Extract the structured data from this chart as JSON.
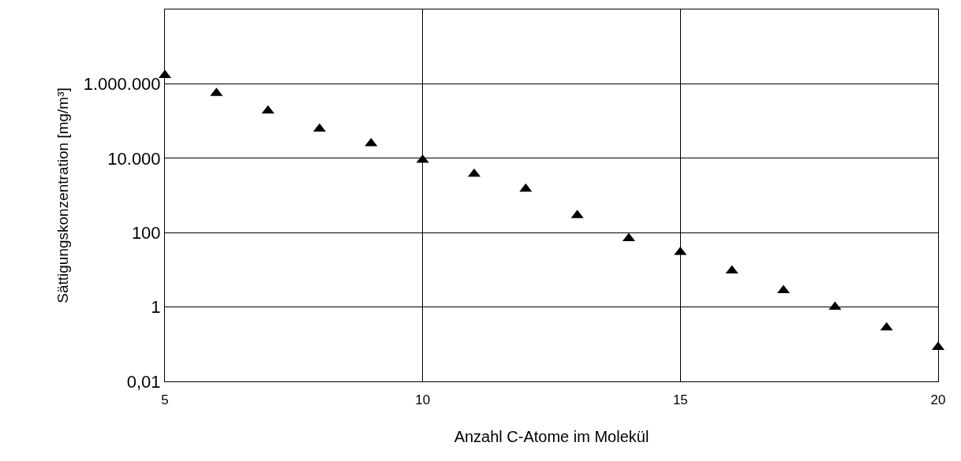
{
  "chart_data": {
    "type": "scatter",
    "xlabel": "Anzahl C-Atome im Molekül",
    "ylabel": "Sättigungskonzentration [mg/m³]",
    "x": [
      5,
      6,
      7,
      8,
      9,
      10,
      11,
      12,
      13,
      14,
      15,
      16,
      17,
      18,
      19,
      20
    ],
    "values": [
      1700000,
      560000,
      190000,
      62000,
      25000,
      9000,
      3800,
      1500,
      290,
      70,
      30,
      9.5,
      2.8,
      1.0,
      0.28,
      0.083
    ],
    "color": "#000000",
    "marker": "triangle",
    "log": "y",
    "grid": true,
    "xlim": [
      5,
      20
    ],
    "xticks": [
      5,
      10,
      15,
      20
    ],
    "ylim": [
      0.01,
      100000000
    ],
    "yticks": [
      {
        "value": 0.01,
        "label": "0,01"
      },
      1,
      100,
      {
        "value": 10000,
        "label": "10.000"
      },
      {
        "value": 1000000,
        "label": "1.000.000"
      }
    ]
  }
}
